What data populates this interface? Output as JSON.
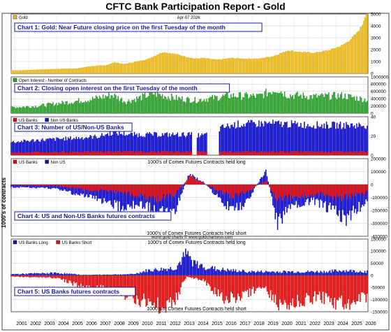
{
  "page_title": "CFTC Bank Participation Report - Gold",
  "date_label": "Apr-07  2026",
  "watermark": "world gold charts © www.goldchartsrus.com",
  "y_axis_title": "1000's of contracts",
  "x_years": [
    "2001",
    "2002",
    "2003",
    "2004",
    "2005",
    "2006",
    "2007",
    "2008",
    "2009",
    "2010",
    "2011",
    "2012",
    "2013",
    "2014",
    "2015",
    "2016",
    "2017",
    "2018",
    "2019",
    "2020",
    "2021",
    "2022",
    "2023",
    "2024",
    "2025",
    "2026"
  ],
  "colors": {
    "gold": "#e8b820",
    "green": "#2e9e2e",
    "red": "#dd1111",
    "blue": "#1111cc",
    "title_text": "#1a1a9a",
    "title_border": "#1a1a9a"
  },
  "chart_data": [
    {
      "type": "bar",
      "title": "Chart 1: Gold: Near Future closing price on the first Tuesday of the month",
      "legend": [
        {
          "name": "Gold",
          "color": "#e8b820"
        }
      ],
      "ylim": [
        0,
        5000
      ],
      "yticks": [
        "0",
        "1000",
        "2000",
        "3000",
        "4000",
        "5000"
      ],
      "knots": [
        [
          2000.75,
          270
        ],
        [
          2001.5,
          265
        ],
        [
          2002.5,
          320
        ],
        [
          2003.5,
          360
        ],
        [
          2004.5,
          400
        ],
        [
          2005.5,
          430
        ],
        [
          2006.5,
          620
        ],
        [
          2007.5,
          680
        ],
        [
          2008.2,
          950
        ],
        [
          2008.8,
          780
        ],
        [
          2009.5,
          950
        ],
        [
          2010.5,
          1200
        ],
        [
          2011.6,
          1800
        ],
        [
          2012.5,
          1650
        ],
        [
          2013.3,
          1400
        ],
        [
          2013.9,
          1250
        ],
        [
          2014.5,
          1300
        ],
        [
          2015.5,
          1150
        ],
        [
          2016.5,
          1300
        ],
        [
          2017.5,
          1250
        ],
        [
          2018.5,
          1250
        ],
        [
          2019.5,
          1450
        ],
        [
          2020.6,
          1950
        ],
        [
          2021.5,
          1800
        ],
        [
          2022.5,
          1750
        ],
        [
          2023.5,
          1950
        ],
        [
          2024.5,
          2400
        ],
        [
          2025.0,
          2800
        ],
        [
          2025.5,
          3400
        ],
        [
          2025.9,
          4100
        ],
        [
          2026.1,
          4900
        ],
        [
          2026.27,
          5100
        ]
      ]
    },
    {
      "type": "bar",
      "title": "Chart 2: Closing open interest on the first Tuesday of the month",
      "legend": [
        {
          "name": "Open Interest - Number of Contracts",
          "color": "#2e9e2e"
        }
      ],
      "ylim": [
        0,
        1000000
      ],
      "yticks": [
        "0",
        "200000",
        "400000",
        "600000",
        "800000",
        "1000000"
      ],
      "knots": [
        [
          2000.75,
          170000
        ],
        [
          2002.5,
          200000
        ],
        [
          2004.5,
          300000
        ],
        [
          2006.5,
          400000
        ],
        [
          2008.0,
          520000
        ],
        [
          2009.0,
          330000
        ],
        [
          2011.0,
          560000
        ],
        [
          2012.5,
          430000
        ],
        [
          2014.0,
          370000
        ],
        [
          2016.5,
          500000
        ],
        [
          2018.5,
          480000
        ],
        [
          2019.8,
          700000
        ],
        [
          2020.5,
          520000
        ],
        [
          2022.5,
          470000
        ],
        [
          2024.5,
          500000
        ],
        [
          2026.27,
          380000
        ]
      ]
    },
    {
      "type": "bar",
      "title": "Chart 3: Number of US/Non-US Banks",
      "legend": [
        {
          "name": "US Banks",
          "color": "#dd1111"
        },
        {
          "name": "Non US Banks",
          "color": "#1111cc"
        }
      ],
      "ylim": [
        0,
        40
      ],
      "yticks": [
        "0",
        "20",
        "40"
      ],
      "gaps": [
        [
          2013.7,
          2014.05
        ],
        [
          2014.75,
          2015.65
        ]
      ],
      "series": [
        {
          "name": "US Banks",
          "knots": [
            [
              2000.75,
              3
            ],
            [
              2007.0,
              4
            ],
            [
              2014.0,
              4
            ],
            [
              2016.0,
              4
            ],
            [
              2026.27,
              4
            ]
          ]
        },
        {
          "name": "Non US Banks",
          "knots": [
            [
              2000.75,
              14
            ],
            [
              2002.5,
              16
            ],
            [
              2005.0,
              18
            ],
            [
              2007.0,
              20
            ],
            [
              2008.0,
              24
            ],
            [
              2009.5,
              22
            ],
            [
              2011.0,
              22
            ],
            [
              2013.5,
              22
            ],
            [
              2014.5,
              21
            ],
            [
              2016.0,
              30
            ],
            [
              2017.0,
              33
            ],
            [
              2019.0,
              34
            ],
            [
              2021.0,
              33
            ],
            [
              2023.0,
              32
            ],
            [
              2026.27,
              32
            ]
          ]
        }
      ]
    },
    {
      "type": "bar",
      "title": "Chart 4: US and Non-US Banks futures contracts",
      "legend": [
        {
          "name": "US Banks",
          "color": "#dd1111"
        },
        {
          "name": "Non US",
          "color": "#1111cc"
        }
      ],
      "caption_top": "1000's of Comex Futures Contracts held long",
      "caption_bottom": "1000's of Comex Futures Contracts held short",
      "ylim": [
        -400000,
        200000
      ],
      "yticks": [
        "200000",
        "100000",
        "0",
        "-100000",
        "-200000",
        "-300000",
        "-400000"
      ],
      "series": [
        {
          "name": "US Banks",
          "knots": [
            [
              2000.75,
              -5000
            ],
            [
              2004.0,
              -10000
            ],
            [
              2006.0,
              -40000
            ],
            [
              2008.5,
              -60000
            ],
            [
              2010.5,
              -100000
            ],
            [
              2011.5,
              -110000
            ],
            [
              2012.5,
              -80000
            ],
            [
              2013.5,
              60000
            ],
            [
              2014.5,
              10000
            ],
            [
              2016.5,
              -90000
            ],
            [
              2017.5,
              -60000
            ],
            [
              2019.0,
              30000
            ],
            [
              2019.8,
              -120000
            ],
            [
              2021.0,
              -90000
            ],
            [
              2023.0,
              -80000
            ],
            [
              2024.5,
              -110000
            ],
            [
              2026.27,
              -60000
            ]
          ]
        },
        {
          "name": "Non US",
          "knots": [
            [
              2000.75,
              -20000
            ],
            [
              2004.0,
              -30000
            ],
            [
              2006.0,
              -90000
            ],
            [
              2007.0,
              -110000
            ],
            [
              2008.5,
              -170000
            ],
            [
              2010.0,
              -150000
            ],
            [
              2011.5,
              -220000
            ],
            [
              2012.5,
              -200000
            ],
            [
              2013.5,
              80000
            ],
            [
              2014.5,
              20000
            ],
            [
              2016.5,
              -200000
            ],
            [
              2017.5,
              -150000
            ],
            [
              2019.0,
              110000
            ],
            [
              2019.8,
              -300000
            ],
            [
              2021.0,
              -160000
            ],
            [
              2022.5,
              -130000
            ],
            [
              2023.5,
              -180000
            ],
            [
              2024.8,
              -260000
            ],
            [
              2026.27,
              -120000
            ]
          ]
        }
      ]
    },
    {
      "type": "bar",
      "title": "Chart 5: US Banks futures contracts",
      "legend": [
        {
          "name": "US Banks Long",
          "color": "#1111cc"
        },
        {
          "name": "US Banks Short",
          "color": "#dd1111"
        }
      ],
      "caption_top": "1000's of Comex Futures Contracts held long",
      "caption_bottom": "1000's of Comex Futures Contracts held short",
      "ylim": [
        -150000,
        150000
      ],
      "yticks": [
        "150000",
        "100000",
        "50000",
        "0",
        "-50000",
        "-100000",
        "-150000"
      ],
      "series": [
        {
          "name": "US Banks Long",
          "knots": [
            [
              2000.75,
              5000
            ],
            [
              2004.0,
              10000
            ],
            [
              2006.0,
              2000
            ],
            [
              2009.5,
              5000
            ],
            [
              2010.5,
              20000
            ],
            [
              2011.5,
              25000
            ],
            [
              2012.5,
              30000
            ],
            [
              2013.3,
              85000
            ],
            [
              2014.0,
              45000
            ],
            [
              2015.5,
              25000
            ],
            [
              2016.5,
              20000
            ],
            [
              2018.0,
              15000
            ],
            [
              2019.5,
              15000
            ],
            [
              2021.0,
              15000
            ],
            [
              2023.0,
              15000
            ],
            [
              2024.5,
              20000
            ],
            [
              2026.27,
              15000
            ]
          ]
        },
        {
          "name": "US Banks Short",
          "knots": [
            [
              2000.75,
              -5000
            ],
            [
              2004.0,
              -10000
            ],
            [
              2005.5,
              -40000
            ],
            [
              2006.5,
              -60000
            ],
            [
              2008.0,
              -50000
            ],
            [
              2009.0,
              -80000
            ],
            [
              2010.5,
              -110000
            ],
            [
              2011.5,
              -130000
            ],
            [
              2012.5,
              -100000
            ],
            [
              2013.3,
              -5000
            ],
            [
              2014.5,
              -20000
            ],
            [
              2016.0,
              -100000
            ],
            [
              2017.5,
              -80000
            ],
            [
              2018.8,
              -40000
            ],
            [
              2019.8,
              -120000
            ],
            [
              2021.0,
              -110000
            ],
            [
              2022.5,
              -90000
            ],
            [
              2023.5,
              -100000
            ],
            [
              2024.5,
              -120000
            ],
            [
              2026.27,
              -90000
            ]
          ]
        }
      ]
    }
  ]
}
